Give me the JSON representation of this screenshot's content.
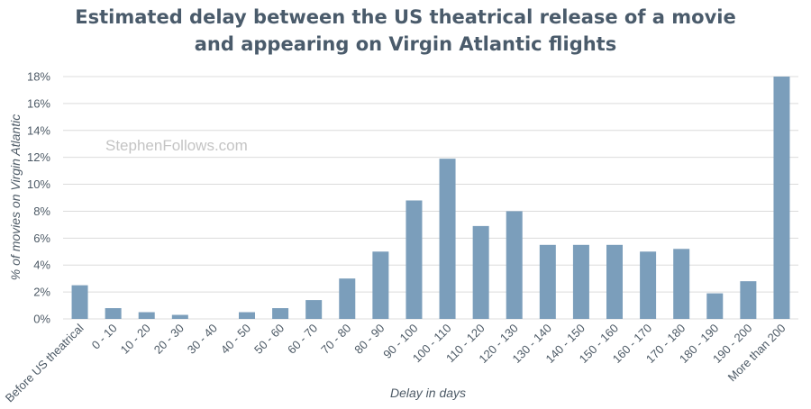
{
  "chart_data": {
    "type": "bar",
    "title_line1": "Estimated delay between the US theatrical release of a movie",
    "title_line2": "and appearing on Virgin Atlantic flights",
    "xlabel": "Delay in days",
    "ylabel": "% of movies on Virgin Atlantic",
    "watermark": "StephenFollows.com",
    "categories": [
      "Before US theatrical",
      "0 - 10",
      "10 - 20",
      "20 - 30",
      "30 - 40",
      "40 - 50",
      "50 - 60",
      "60 - 70",
      "70 - 80",
      "80 - 90",
      "90 - 100",
      "100 - 110",
      "110 - 120",
      "120 - 130",
      "130 - 140",
      "140 - 150",
      "150 - 160",
      "160 - 170",
      "170 - 180",
      "180 - 190",
      "190 - 200",
      "More than 200"
    ],
    "values": [
      2.5,
      0.8,
      0.5,
      0.3,
      0.0,
      0.5,
      0.8,
      1.4,
      3.0,
      5.0,
      8.8,
      11.9,
      6.9,
      8.0,
      5.5,
      5.5,
      5.5,
      5.0,
      5.2,
      1.9,
      2.8,
      18.0
    ],
    "ylim": [
      0,
      18
    ],
    "yticks": [
      0,
      2,
      4,
      6,
      8,
      10,
      12,
      14,
      16,
      18
    ],
    "ytick_labels": [
      "0%",
      "2%",
      "4%",
      "6%",
      "8%",
      "10%",
      "12%",
      "14%",
      "16%",
      "18%"
    ],
    "grid": true,
    "bar_color": "#7b9ebb",
    "grid_color": "#dcdcdc"
  }
}
